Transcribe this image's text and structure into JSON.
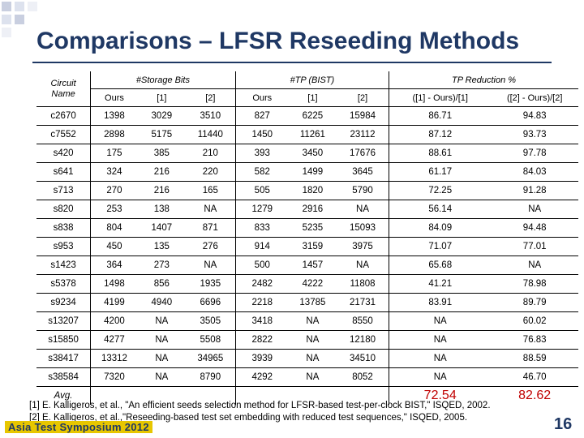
{
  "title": "Comparisons – LFSR Reseeding Methods",
  "table": {
    "corner_label_1": "Circuit",
    "corner_label_2": "Name",
    "group_headers": [
      "#Storage Bits",
      "#TP (BIST)",
      "TP Reduction %"
    ],
    "sub_headers": [
      "Ours",
      "[1]",
      "[2]",
      "Ours",
      "[1]",
      "[2]",
      "([1] - Ours)/[1]",
      "([2] - Ours)/[2]"
    ],
    "rows": [
      [
        "c2670",
        "1398",
        "3029",
        "3510",
        "827",
        "6225",
        "15984",
        "86.71",
        "94.83"
      ],
      [
        "c7552",
        "2898",
        "5175",
        "11440",
        "1450",
        "11261",
        "23112",
        "87.12",
        "93.73"
      ],
      [
        "s420",
        "175",
        "385",
        "210",
        "393",
        "3450",
        "17676",
        "88.61",
        "97.78"
      ],
      [
        "s641",
        "324",
        "216",
        "220",
        "582",
        "1499",
        "3645",
        "61.17",
        "84.03"
      ],
      [
        "s713",
        "270",
        "216",
        "165",
        "505",
        "1820",
        "5790",
        "72.25",
        "91.28"
      ],
      [
        "s820",
        "253",
        "138",
        "NA",
        "1279",
        "2916",
        "NA",
        "56.14",
        "NA"
      ],
      [
        "s838",
        "804",
        "1407",
        "871",
        "833",
        "5235",
        "15093",
        "84.09",
        "94.48"
      ],
      [
        "s953",
        "450",
        "135",
        "276",
        "914",
        "3159",
        "3975",
        "71.07",
        "77.01"
      ],
      [
        "s1423",
        "364",
        "273",
        "NA",
        "500",
        "1457",
        "NA",
        "65.68",
        "NA"
      ],
      [
        "s5378",
        "1498",
        "856",
        "1935",
        "2482",
        "4222",
        "11808",
        "41.21",
        "78.98"
      ],
      [
        "s9234",
        "4199",
        "4940",
        "6696",
        "2218",
        "13785",
        "21731",
        "83.91",
        "89.79"
      ],
      [
        "s13207",
        "4200",
        "NA",
        "3505",
        "3418",
        "NA",
        "8550",
        "NA",
        "60.02"
      ],
      [
        "s15850",
        "4277",
        "NA",
        "5508",
        "2822",
        "NA",
        "12180",
        "NA",
        "76.83"
      ],
      [
        "s38417",
        "13312",
        "NA",
        "34965",
        "3939",
        "NA",
        "34510",
        "NA",
        "88.59"
      ],
      [
        "s38584",
        "7320",
        "NA",
        "8790",
        "4292",
        "NA",
        "8052",
        "NA",
        "46.70"
      ]
    ],
    "avg_label": "Avg.",
    "avg_values": [
      "72.54",
      "82.62"
    ]
  },
  "references": [
    "[1] E. Kalligeros, et al., \"An efficient seeds selection method for LFSR-based test-per-clock BIST,\" ISQED, 2002.",
    "[2] E. Kalligeros, et al.,\"Reseeding-based test set embedding with reduced test sequences,\" ISQED, 2005."
  ],
  "footer": {
    "conference": "Asia Test Symposium 2012",
    "page_number": "16"
  },
  "colors": {
    "title": "#1f3864",
    "average_values": "#c00000"
  }
}
